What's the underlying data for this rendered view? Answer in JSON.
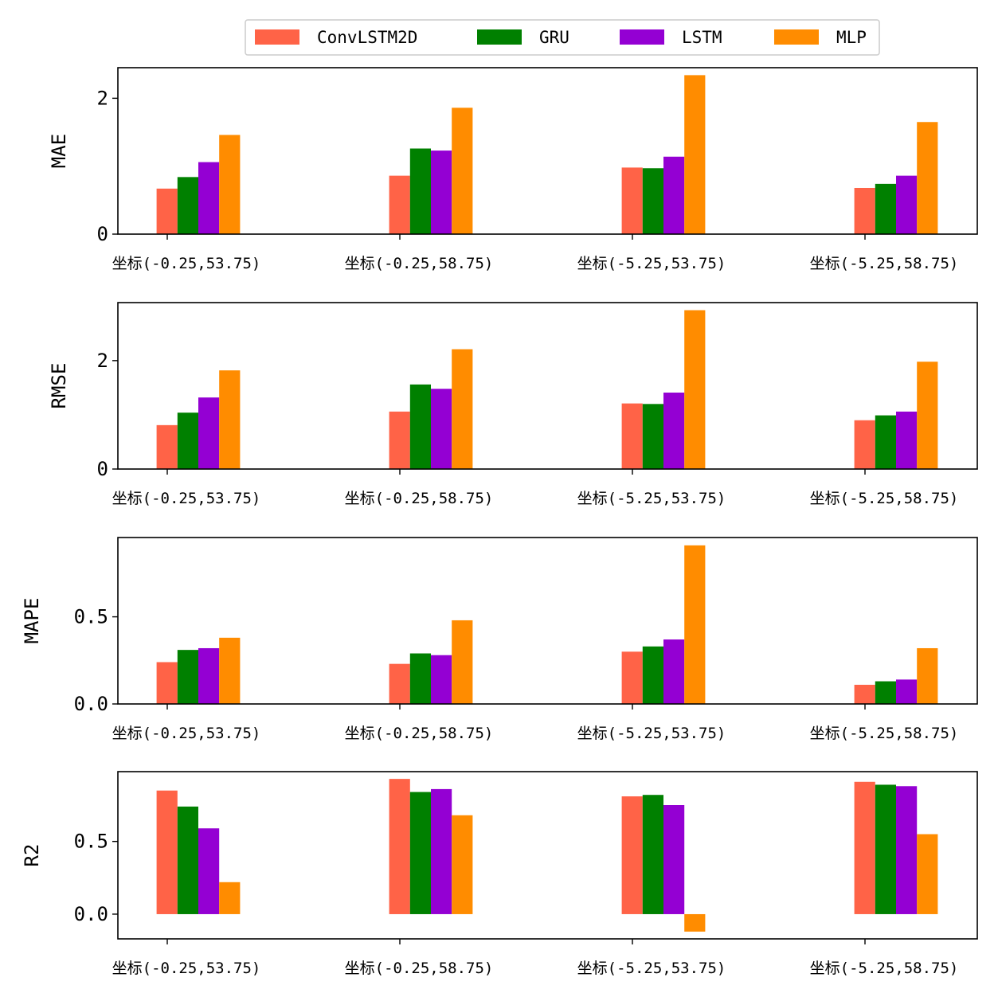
{
  "chart_data": {
    "type": "bar",
    "categories": [
      "坐标(-0.25,53.75)",
      "坐标(-0.25,58.75)",
      "坐标(-5.25,53.75)",
      "坐标(-5.25,58.75)"
    ],
    "series_names": [
      "ConvLSTM2D",
      "GRU",
      "LSTM",
      "MLP"
    ],
    "colors": [
      "#ff6347",
      "#008000",
      "#9400d3",
      "#ff8c00"
    ],
    "legend_position": "top-center",
    "panels": [
      {
        "ylabel": "MAE",
        "ylim": [
          0,
          2.45
        ],
        "yticks": [
          0,
          2
        ],
        "ytick_labels": [
          "0",
          "2"
        ],
        "series": [
          {
            "name": "ConvLSTM2D",
            "values": [
              0.67,
              0.86,
              0.98,
              0.68
            ]
          },
          {
            "name": "GRU",
            "values": [
              0.84,
              1.26,
              0.97,
              0.74
            ]
          },
          {
            "name": "LSTM",
            "values": [
              1.06,
              1.23,
              1.14,
              0.86
            ]
          },
          {
            "name": "MLP",
            "values": [
              1.46,
              1.86,
              2.34,
              1.65
            ]
          }
        ]
      },
      {
        "ylabel": "RMSE",
        "ylim": [
          0,
          3.07
        ],
        "yticks": [
          0,
          2
        ],
        "ytick_labels": [
          "0",
          "2"
        ],
        "series": [
          {
            "name": "ConvLSTM2D",
            "values": [
              0.81,
              1.06,
              1.21,
              0.9
            ]
          },
          {
            "name": "GRU",
            "values": [
              1.04,
              1.56,
              1.2,
              0.99
            ]
          },
          {
            "name": "LSTM",
            "values": [
              1.32,
              1.48,
              1.41,
              1.06
            ]
          },
          {
            "name": "MLP",
            "values": [
              1.82,
              2.21,
              2.93,
              1.98
            ]
          }
        ]
      },
      {
        "ylabel": "MAPE",
        "ylim": [
          0,
          0.955
        ],
        "yticks": [
          0,
          0.5
        ],
        "ytick_labels": [
          "0.0",
          "0.5"
        ],
        "series": [
          {
            "name": "ConvLSTM2D",
            "values": [
              0.24,
              0.23,
              0.3,
              0.11
            ]
          },
          {
            "name": "GRU",
            "values": [
              0.31,
              0.29,
              0.33,
              0.13
            ]
          },
          {
            "name": "LSTM",
            "values": [
              0.32,
              0.28,
              0.37,
              0.14
            ]
          },
          {
            "name": "MLP",
            "values": [
              0.38,
              0.48,
              0.91,
              0.32
            ]
          }
        ]
      },
      {
        "ylabel": "R2",
        "ylim": [
          -0.17,
          0.98
        ],
        "yticks": [
          0,
          0.5
        ],
        "ytick_labels": [
          "0.0",
          "0.5"
        ],
        "series": [
          {
            "name": "ConvLSTM2D",
            "values": [
              0.85,
              0.93,
              0.81,
              0.91
            ]
          },
          {
            "name": "GRU",
            "values": [
              0.74,
              0.84,
              0.82,
              0.89
            ]
          },
          {
            "name": "LSTM",
            "values": [
              0.59,
              0.86,
              0.75,
              0.88
            ]
          },
          {
            "name": "MLP",
            "values": [
              0.22,
              0.68,
              -0.12,
              0.55
            ]
          }
        ]
      }
    ]
  }
}
